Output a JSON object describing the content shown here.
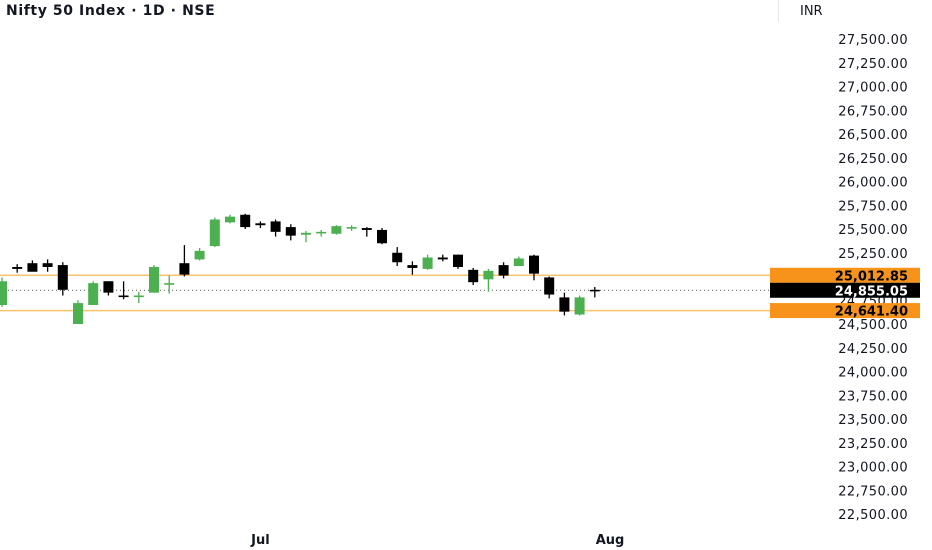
{
  "header": {
    "title": "Nifty 50 Index · 1D · NSE",
    "currency": "INR"
  },
  "colors": {
    "up": "#4caf50",
    "down": "#000000",
    "level_line": "#f7c46c",
    "level_tag": "#f7931a",
    "last_price_tag": "#000000"
  },
  "chart_data": {
    "type": "candlestick",
    "title": "Nifty 50 Index · 1D · NSE",
    "ylabel": "INR",
    "ylim": [
      22500,
      27500
    ],
    "y_ticks": [
      "27,500.00",
      "27,250.00",
      "27,000.00",
      "26,750.00",
      "26,500.00",
      "26,250.00",
      "26,000.00",
      "25,750.00",
      "25,500.00",
      "25,250.00",
      "25,000.00",
      "24,750.00",
      "24,500.00",
      "24,250.00",
      "24,000.00",
      "23,750.00",
      "23,500.00",
      "23,250.00",
      "23,000.00",
      "22,750.00",
      "22,500.00"
    ],
    "y_tick_values": [
      27500,
      27250,
      27000,
      26750,
      26500,
      26250,
      26000,
      25750,
      25500,
      25250,
      25000,
      24750,
      24500,
      24250,
      24000,
      23750,
      23500,
      23250,
      23000,
      22750,
      22500
    ],
    "x_ticks": [
      {
        "label": "Jul",
        "index": 17
      },
      {
        "label": "Aug",
        "index": 40
      }
    ],
    "candles": [
      {
        "o": 24700,
        "h": 24990,
        "l": 24680,
        "c": 24950
      },
      {
        "o": 25100,
        "h": 25130,
        "l": 25040,
        "c": 25080
      },
      {
        "o": 25140,
        "h": 25170,
        "l": 25060,
        "c": 25050
      },
      {
        "o": 25140,
        "h": 25180,
        "l": 25050,
        "c": 25100
      },
      {
        "o": 25120,
        "h": 25150,
        "l": 24800,
        "c": 24860
      },
      {
        "o": 24500,
        "h": 24750,
        "l": 24500,
        "c": 24720
      },
      {
        "o": 24700,
        "h": 24950,
        "l": 24700,
        "c": 24930
      },
      {
        "o": 24950,
        "h": 24950,
        "l": 24800,
        "c": 24830
      },
      {
        "o": 24800,
        "h": 24950,
        "l": 24760,
        "c": 24790
      },
      {
        "o": 24790,
        "h": 24840,
        "l": 24720,
        "c": 24800
      },
      {
        "o": 24830,
        "h": 25120,
        "l": 24830,
        "c": 25100
      },
      {
        "o": 24920,
        "h": 25010,
        "l": 24820,
        "c": 24930
      },
      {
        "o": 25140,
        "h": 25330,
        "l": 25000,
        "c": 25020
      },
      {
        "o": 25180,
        "h": 25300,
        "l": 25170,
        "c": 25270
      },
      {
        "o": 25320,
        "h": 25620,
        "l": 25310,
        "c": 25600
      },
      {
        "o": 25570,
        "h": 25650,
        "l": 25560,
        "c": 25630
      },
      {
        "o": 25650,
        "h": 25660,
        "l": 25500,
        "c": 25520
      },
      {
        "o": 25560,
        "h": 25580,
        "l": 25510,
        "c": 25540
      },
      {
        "o": 25580,
        "h": 25600,
        "l": 25420,
        "c": 25470
      },
      {
        "o": 25520,
        "h": 25550,
        "l": 25380,
        "c": 25430
      },
      {
        "o": 25440,
        "h": 25480,
        "l": 25360,
        "c": 25460
      },
      {
        "o": 25460,
        "h": 25490,
        "l": 25420,
        "c": 25470
      },
      {
        "o": 25450,
        "h": 25540,
        "l": 25440,
        "c": 25530
      },
      {
        "o": 25510,
        "h": 25540,
        "l": 25480,
        "c": 25520
      },
      {
        "o": 25510,
        "h": 25520,
        "l": 25420,
        "c": 25490
      },
      {
        "o": 25490,
        "h": 25510,
        "l": 25340,
        "c": 25350
      },
      {
        "o": 25250,
        "h": 25310,
        "l": 25110,
        "c": 25150
      },
      {
        "o": 25120,
        "h": 25160,
        "l": 25020,
        "c": 25090
      },
      {
        "o": 25080,
        "h": 25230,
        "l": 25070,
        "c": 25200
      },
      {
        "o": 25200,
        "h": 25230,
        "l": 25160,
        "c": 25180
      },
      {
        "o": 25230,
        "h": 25230,
        "l": 25080,
        "c": 25100
      },
      {
        "o": 25070,
        "h": 25090,
        "l": 24910,
        "c": 24940
      },
      {
        "o": 24970,
        "h": 25080,
        "l": 24840,
        "c": 25060
      },
      {
        "o": 25120,
        "h": 25150,
        "l": 24980,
        "c": 25010
      },
      {
        "o": 25110,
        "h": 25210,
        "l": 25110,
        "c": 25190
      },
      {
        "o": 25220,
        "h": 25230,
        "l": 24960,
        "c": 25030
      },
      {
        "o": 24990,
        "h": 25000,
        "l": 24770,
        "c": 24810
      },
      {
        "o": 24780,
        "h": 24830,
        "l": 24590,
        "c": 24630
      },
      {
        "o": 24600,
        "h": 24800,
        "l": 24590,
        "c": 24780
      },
      {
        "o": 24860,
        "h": 24890,
        "l": 24780,
        "c": 24855
      }
    ],
    "levels": [
      {
        "value": 25012.85,
        "label": "25,012.85"
      },
      {
        "value": 24641.4,
        "label": "24,641.40"
      }
    ],
    "last_price": {
      "value": 24855.05,
      "label": "24,855.05"
    }
  }
}
